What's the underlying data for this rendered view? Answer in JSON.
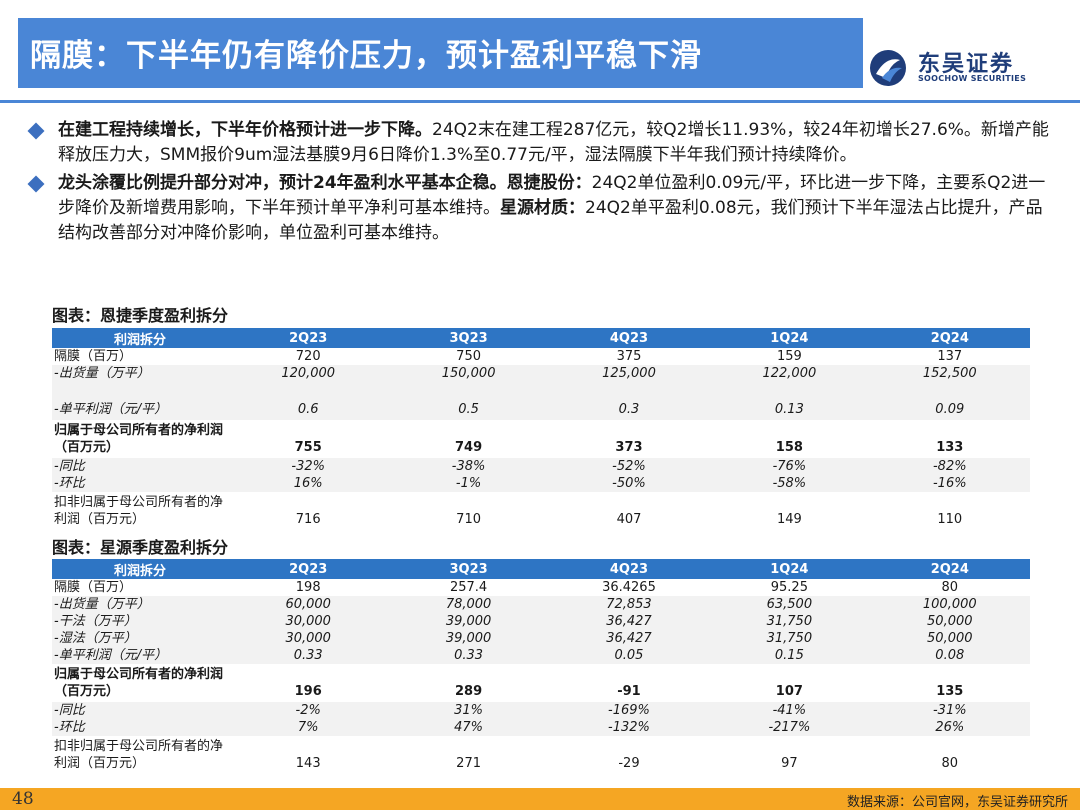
{
  "header": {
    "title": "隔膜：下半年仍有降价压力，预计盈利平稳下滑",
    "logo_cn": "东吴证券",
    "logo_en": "SOOCHOW SECURITIES"
  },
  "bullets": [
    {
      "bold": "在建工程持续增长，下半年价格预计进一步下降。",
      "text": "24Q2末在建工程287亿元，较Q2增长11.93%，较24年初增长27.6%。新增产能释放压力大，SMM报价9um湿法基膜9月6日降价1.3%至0.77元/平，湿法隔膜下半年我们预计持续降价。"
    },
    {
      "bold": "龙头涂覆比例提升部分对冲，预计24年盈利水平基本企稳。恩捷股份：",
      "text": "24Q2单位盈利0.09元/平，环比进一步下降，主要系Q2进一步降价及新增费用影响，下半年预计单平净利可基本维持。",
      "bold2": "星源材质：",
      "text2": "24Q2单平盈利0.08元，我们预计下半年湿法占比提升，产品结构改善部分对冲降价影响，单位盈利可基本维持。"
    }
  ],
  "table1": {
    "caption": "图表：恩捷季度盈利拆分",
    "headers": [
      "利润拆分",
      "2Q23",
      "3Q23",
      "4Q23",
      "1Q24",
      "2Q24"
    ],
    "rows": [
      {
        "label": "隔膜（百万）",
        "values": [
          "720",
          "750",
          "375",
          "159",
          "137"
        ]
      },
      {
        "label": "-出货量（万平）",
        "values": [
          "120,000",
          "150,000",
          "125,000",
          "122,000",
          "152,500"
        ]
      },
      {
        "label": "-单平利润（元/平）",
        "values": [
          "0.6",
          "0.5",
          "0.3",
          "0.13",
          "0.09"
        ]
      },
      {
        "label": "归属于母公司所有者的净利润（百万元）",
        "values": [
          "755",
          "749",
          "373",
          "158",
          "133"
        ]
      },
      {
        "label": "-同比",
        "values": [
          "-32%",
          "-38%",
          "-52%",
          "-76%",
          "-82%"
        ]
      },
      {
        "label": "-环比",
        "values": [
          "16%",
          "-1%",
          "-50%",
          "-58%",
          "-16%"
        ]
      },
      {
        "label": "扣非归属于母公司所有者的净利润（百万元）",
        "values": [
          "716",
          "710",
          "407",
          "149",
          "110"
        ]
      }
    ]
  },
  "table2": {
    "caption": "图表：星源季度盈利拆分",
    "headers": [
      "利润拆分",
      "2Q23",
      "3Q23",
      "4Q23",
      "1Q24",
      "2Q24"
    ],
    "rows": [
      {
        "label": "隔膜（百万）",
        "values": [
          "198",
          "257.4",
          "36.4265",
          "95.25",
          "80"
        ]
      },
      {
        "label": "-出货量（万平）",
        "values": [
          "60,000",
          "78,000",
          "72,853",
          "63,500",
          "100,000"
        ]
      },
      {
        "label": "-干法（万平）",
        "values": [
          "30,000",
          "39,000",
          "36,427",
          "31,750",
          "50,000"
        ]
      },
      {
        "label": "-湿法（万平）",
        "values": [
          "30,000",
          "39,000",
          "36,427",
          "31,750",
          "50,000"
        ]
      },
      {
        "label": "-单平利润（元/平）",
        "values": [
          "0.33",
          "0.33",
          "0.05",
          "0.15",
          "0.08"
        ]
      },
      {
        "label": "归属于母公司所有者的净利润（百万元）",
        "values": [
          "196",
          "289",
          "-91",
          "107",
          "135"
        ]
      },
      {
        "label": "-同比",
        "values": [
          "-2%",
          "31%",
          "-169%",
          "-41%",
          "-31%"
        ]
      },
      {
        "label": "-环比",
        "values": [
          "7%",
          "47%",
          "-132%",
          "-217%",
          "26%"
        ]
      },
      {
        "label": "扣非归属于母公司所有者的净利润（百万元）",
        "values": [
          "143",
          "271",
          "-29",
          "97",
          "80"
        ]
      }
    ]
  },
  "footer": {
    "page_number": "48",
    "source": "数据来源：公司官网，东吴证券研究所"
  },
  "colors": {
    "title_bar": "#4a86d6",
    "table_header": "#2e75c4",
    "footer_bar": "#f5a623",
    "bullet_diamond": "#3c6fbf"
  }
}
